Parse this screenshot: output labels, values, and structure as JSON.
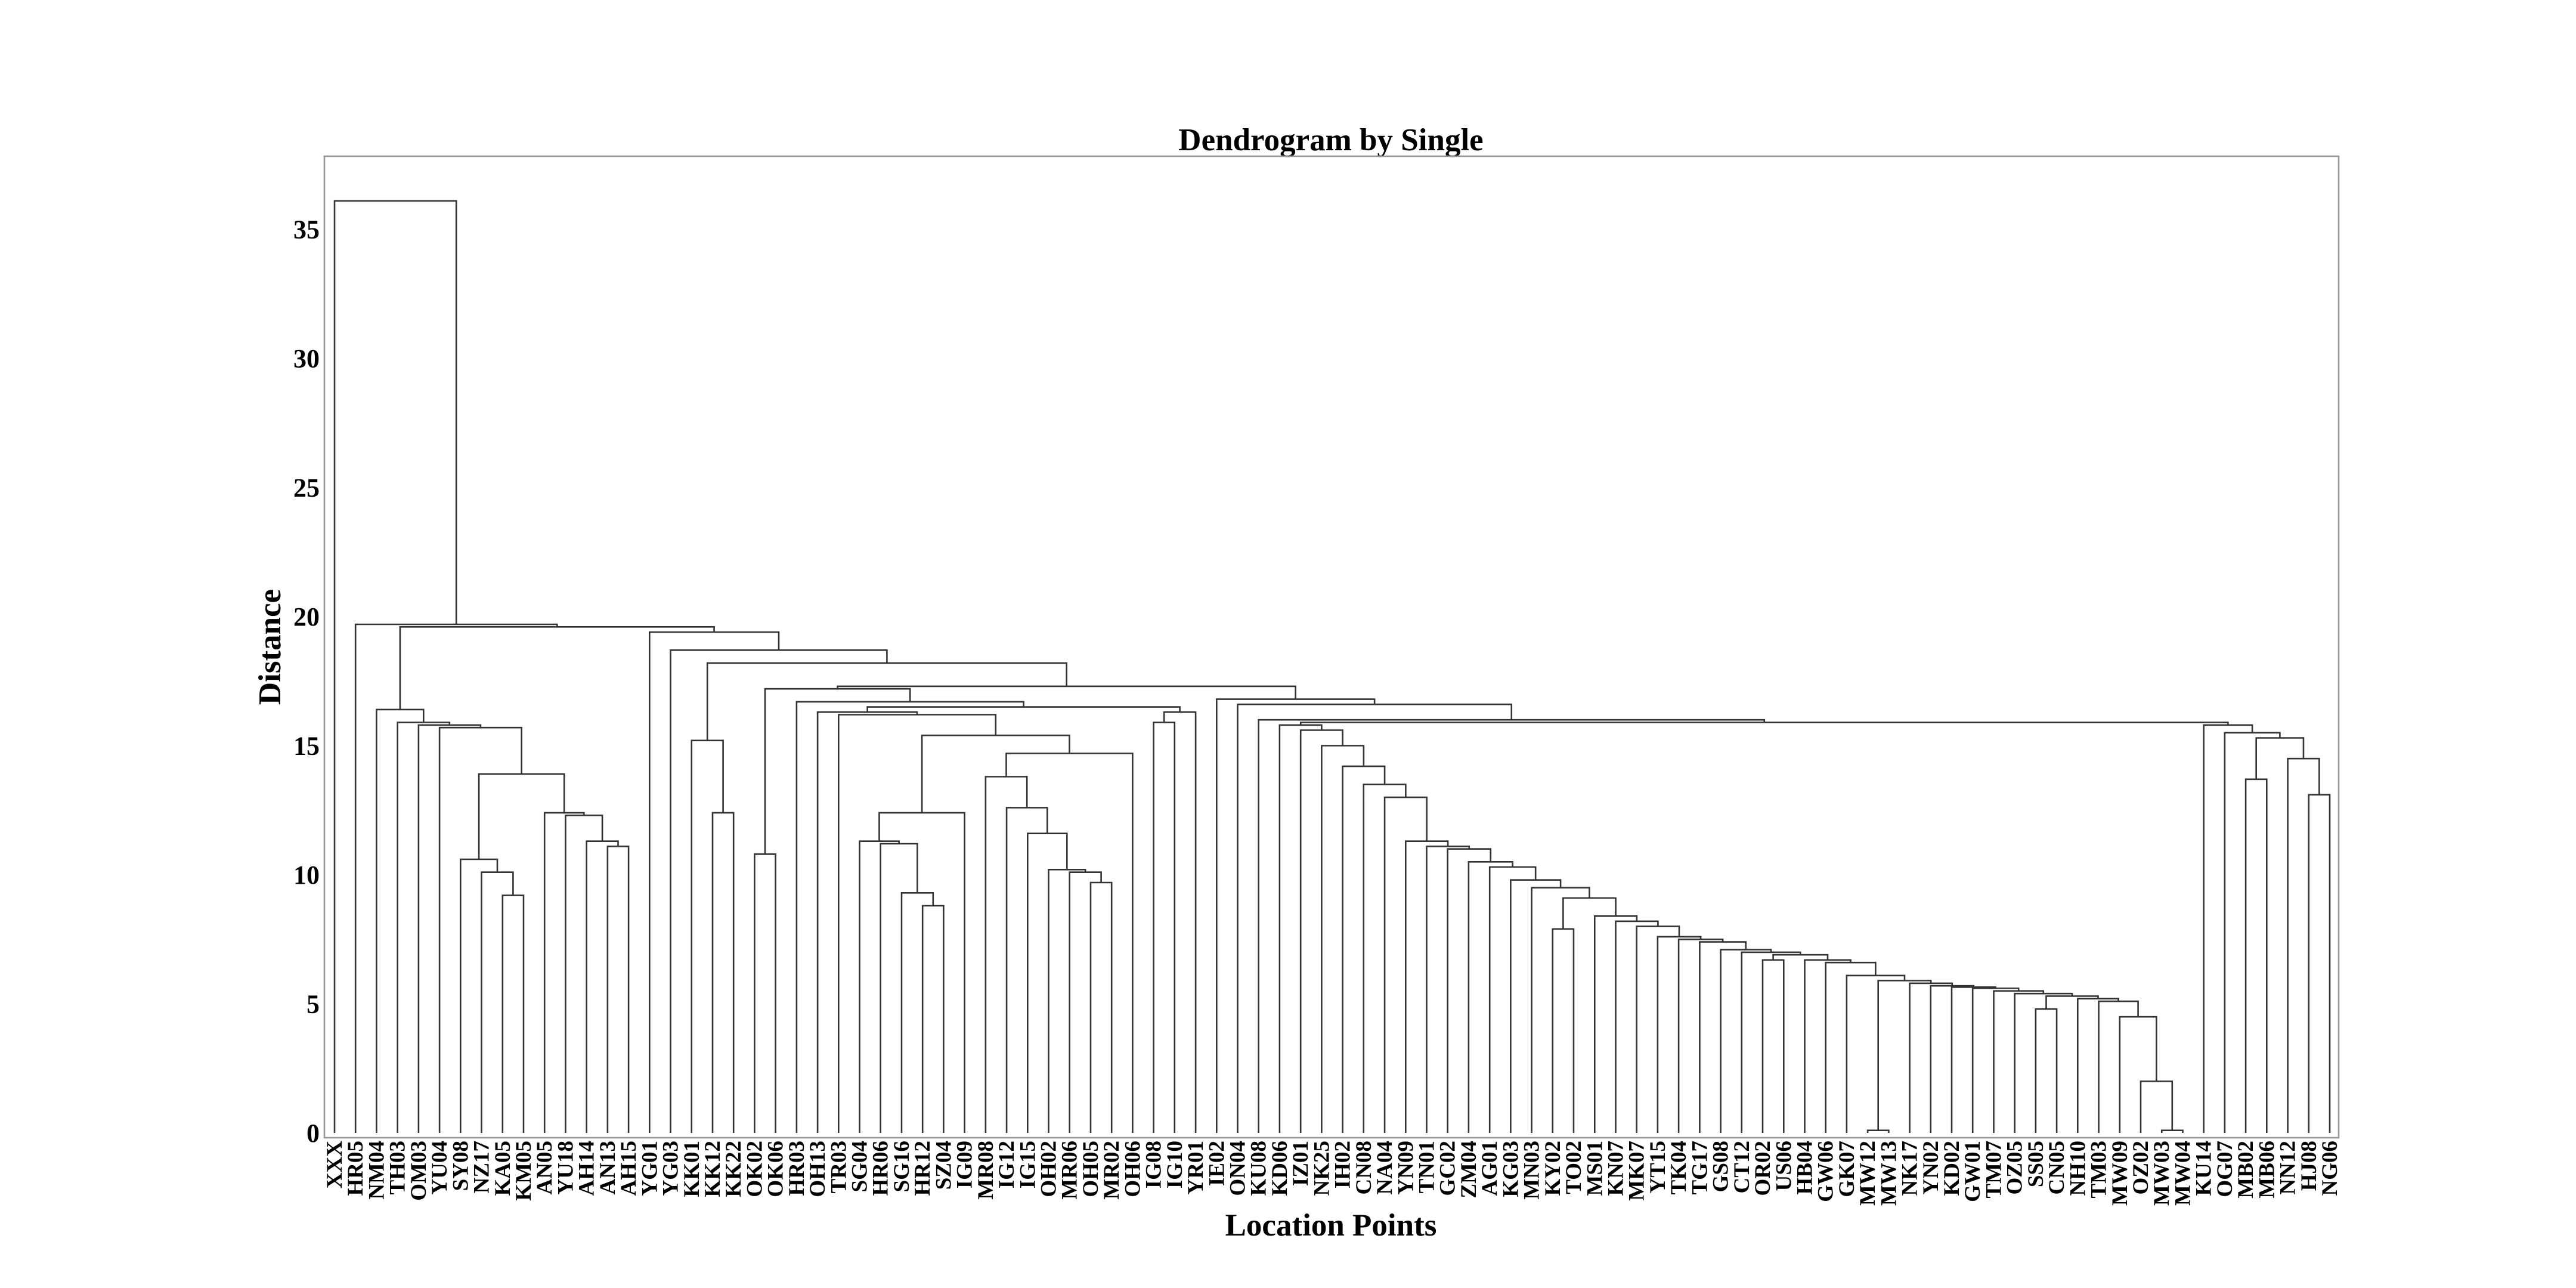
{
  "chart_data": {
    "type": "dendrogram",
    "title": "Dendrogram by Single",
    "xlabel": "Location Points",
    "ylabel": "Distance",
    "ylim": [
      0,
      38
    ],
    "yticks": [
      0,
      5,
      10,
      15,
      20,
      25,
      30,
      35
    ],
    "grid": false,
    "legend": "none",
    "line_color": "#333333",
    "leaves": [
      "XXX",
      "HR05",
      "NM04",
      "TH03",
      "OM03",
      "YU04",
      "SY08",
      "NZ17",
      "KA05",
      "KM05",
      "AN05",
      "YU18",
      "AH14",
      "AN13",
      "AH15",
      "YG01",
      "YG03",
      "KK01",
      "KK12",
      "KK22",
      "OK02",
      "OK06",
      "HR03",
      "OH13",
      "TR03",
      "SG04",
      "HR06",
      "SG16",
      "HR12",
      "SZ04",
      "IG09",
      "MR08",
      "IG12",
      "IG15",
      "OH02",
      "MR06",
      "OH05",
      "MR02",
      "OH06",
      "IG08",
      "IG10",
      "YR01",
      "IE02",
      "ON04",
      "KU08",
      "KD06",
      "IZ01",
      "NK25",
      "IH02",
      "CN08",
      "NA04",
      "YN09",
      "TN01",
      "GC02",
      "ZM04",
      "AG01",
      "KG03",
      "MN03",
      "KY02",
      "TO02",
      "MS01",
      "KN07",
      "MK07",
      "YT15",
      "TK04",
      "TG17",
      "GS08",
      "CT12",
      "OR02",
      "US06",
      "HB04",
      "GW06",
      "GK07",
      "MW12",
      "MW13",
      "NK17",
      "YN02",
      "KD02",
      "GW01",
      "TM07",
      "OZ05",
      "SS05",
      "CN05",
      "NH10",
      "TM03",
      "MW09",
      "OZ02",
      "MW03",
      "MW04",
      "KU14",
      "OG07",
      "MB02",
      "MB06",
      "NN12",
      "HJ08",
      "NG06"
    ],
    "merges": [
      {
        "a": "MW12",
        "b": "MW13",
        "d": 0.1
      },
      {
        "a": "MW03",
        "b": "MW04",
        "d": 0.1
      },
      {
        "a": "OZ02",
        "b": "MW03",
        "d": 2.0
      },
      {
        "a": "MW09",
        "b": "OZ02",
        "d": 4.5
      },
      {
        "a": "SS05",
        "b": "CN05",
        "d": 4.8
      },
      {
        "a": "TM03",
        "b": "MW09",
        "d": 5.1
      },
      {
        "a": "NH10",
        "b": "TM03",
        "d": 5.2
      },
      {
        "a": "SS05",
        "b": "NH10",
        "d": 5.3
      },
      {
        "a": "OZ05",
        "b": "SS05",
        "d": 5.4
      },
      {
        "a": "TM07",
        "b": "OZ05",
        "d": 5.5
      },
      {
        "a": "GW01",
        "b": "TM07",
        "d": 5.6
      },
      {
        "a": "KD02",
        "b": "GW01",
        "d": 5.65
      },
      {
        "a": "YN02",
        "b": "KD02",
        "d": 5.7
      },
      {
        "a": "NK17",
        "b": "YN02",
        "d": 5.8
      },
      {
        "a": "MW12",
        "b": "NK17",
        "d": 5.9
      },
      {
        "a": "GK07",
        "b": "MW12",
        "d": 6.1
      },
      {
        "a": "GW06",
        "b": "GK07",
        "d": 6.6
      },
      {
        "a": "HB04",
        "b": "GW06",
        "d": 6.7
      },
      {
        "a": "OR02",
        "b": "US06",
        "d": 6.7
      },
      {
        "a": "OR02",
        "b": "HB04",
        "d": 6.9
      },
      {
        "a": "CT12",
        "b": "OR02",
        "d": 7.0
      },
      {
        "a": "GS08",
        "b": "CT12",
        "d": 7.1
      },
      {
        "a": "TG17",
        "b": "GS08",
        "d": 7.4
      },
      {
        "a": "TK04",
        "b": "TG17",
        "d": 7.5
      },
      {
        "a": "YT15",
        "b": "TK04",
        "d": 7.6
      },
      {
        "a": "KY02",
        "b": "TO02",
        "d": 7.9
      },
      {
        "a": "MK07",
        "b": "YT15",
        "d": 8.0
      },
      {
        "a": "KN07",
        "b": "MK07",
        "d": 8.2
      },
      {
        "a": "MS01",
        "b": "KN07",
        "d": 8.4
      },
      {
        "a": "KY02",
        "b": "MS01",
        "d": 9.1
      },
      {
        "a": "MN03",
        "b": "KY02",
        "d": 9.5
      },
      {
        "a": "KG03",
        "b": "MN03",
        "d": 9.8
      },
      {
        "a": "AG01",
        "b": "KG03",
        "d": 10.3
      },
      {
        "a": "ZM04",
        "b": "AG01",
        "d": 10.5
      },
      {
        "a": "GC02",
        "b": "ZM04",
        "d": 11.0
      },
      {
        "a": "TN01",
        "b": "GC02",
        "d": 11.1
      },
      {
        "a": "YN09",
        "b": "TN01",
        "d": 11.3
      },
      {
        "a": "NA04",
        "b": "YN09",
        "d": 13.0
      },
      {
        "a": "CN08",
        "b": "NA04",
        "d": 13.5
      },
      {
        "a": "IH02",
        "b": "CN08",
        "d": 14.2
      },
      {
        "a": "NK25",
        "b": "IH02",
        "d": 15.0
      },
      {
        "a": "IZ01",
        "b": "NK25",
        "d": 15.6
      },
      {
        "a": "KD06",
        "b": "IZ01",
        "d": 15.8
      },
      {
        "a": "MB02",
        "b": "MB06",
        "d": 13.7
      },
      {
        "a": "HJ08",
        "b": "NG06",
        "d": 13.1
      },
      {
        "a": "NN12",
        "b": "HJ08",
        "d": 14.5
      },
      {
        "a": "MB02",
        "b": "NN12",
        "d": 15.3
      },
      {
        "a": "OG07",
        "b": "MB02",
        "d": 15.5
      },
      {
        "a": "KU14",
        "b": "OG07",
        "d": 15.8
      },
      {
        "a": "KD06",
        "b": "KU14",
        "d": 15.9
      },
      {
        "a": "KU08",
        "b": "KD06",
        "d": 16.0
      },
      {
        "a": "ON04",
        "b": "KU08",
        "d": 16.6
      },
      {
        "a": "IE02",
        "b": "ON04",
        "d": 16.8
      },
      {
        "a": "SZ04",
        "b": "HR12",
        "d": 8.8
      },
      {
        "a": "SG16",
        "b": "HR12",
        "d": 9.3
      },
      {
        "a": "HR06",
        "b": "SG16",
        "d": 11.2
      },
      {
        "a": "SG04",
        "b": "HR06",
        "d": 11.3
      },
      {
        "a": "SG04",
        "b": "IG09",
        "d": 12.4
      },
      {
        "a": "OH05",
        "b": "MR02",
        "d": 9.7
      },
      {
        "a": "MR06",
        "b": "OH05",
        "d": 10.1
      },
      {
        "a": "OH02",
        "b": "MR06",
        "d": 10.2
      },
      {
        "a": "IG15",
        "b": "OH02",
        "d": 11.6
      },
      {
        "a": "IG12",
        "b": "IG15",
        "d": 12.6
      },
      {
        "a": "MR08",
        "b": "IG12",
        "d": 13.8
      },
      {
        "a": "MR08",
        "b": "OH06",
        "d": 14.7
      },
      {
        "a": "SG04",
        "b": "MR08",
        "d": 15.4
      },
      {
        "a": "TR03",
        "b": "SG04",
        "d": 16.2
      },
      {
        "a": "OH13",
        "b": "TR03",
        "d": 16.3
      },
      {
        "a": "IG08",
        "b": "IG10",
        "d": 15.9
      },
      {
        "a": "IG08",
        "b": "YR01",
        "d": 16.3
      },
      {
        "a": "OH13",
        "b": "IG08",
        "d": 16.5
      },
      {
        "a": "HR03",
        "b": "OH13",
        "d": 16.7
      },
      {
        "a": "OK02",
        "b": "OK06",
        "d": 10.8
      },
      {
        "a": "OK02",
        "b": "HR03",
        "d": 17.2
      },
      {
        "a": "OK02",
        "b": "IE02",
        "d": 17.3
      },
      {
        "a": "KK12",
        "b": "KK22",
        "d": 12.4
      },
      {
        "a": "KK01",
        "b": "KK12",
        "d": 15.2
      },
      {
        "a": "KK01",
        "b": "OK02",
        "d": 18.2
      },
      {
        "a": "YG03",
        "b": "KK01",
        "d": 18.7
      },
      {
        "a": "YG01",
        "b": "YG03",
        "d": 19.4
      },
      {
        "a": "KA05",
        "b": "KM05",
        "d": 9.2
      },
      {
        "a": "NZ17",
        "b": "KA05",
        "d": 10.1
      },
      {
        "a": "SY08",
        "b": "NZ17",
        "d": 10.6
      },
      {
        "a": "AN13",
        "b": "AH15",
        "d": 11.1
      },
      {
        "a": "AH14",
        "b": "AN13",
        "d": 11.3
      },
      {
        "a": "YU18",
        "b": "AH14",
        "d": 12.3
      },
      {
        "a": "AN05",
        "b": "YU18",
        "d": 12.4
      },
      {
        "a": "SY08",
        "b": "AN05",
        "d": 13.9
      },
      {
        "a": "YU04",
        "b": "SY08",
        "d": 15.7
      },
      {
        "a": "OM03",
        "b": "YU04",
        "d": 15.8
      },
      {
        "a": "TH03",
        "b": "OM03",
        "d": 15.9
      },
      {
        "a": "NM04",
        "b": "TH03",
        "d": 16.4
      },
      {
        "a": "NM04",
        "b": "YG01",
        "d": 19.6
      },
      {
        "a": "HR05",
        "b": "NM04",
        "d": 19.7
      },
      {
        "a": "XXX",
        "b": "HR05",
        "d": 36.1
      }
    ]
  }
}
